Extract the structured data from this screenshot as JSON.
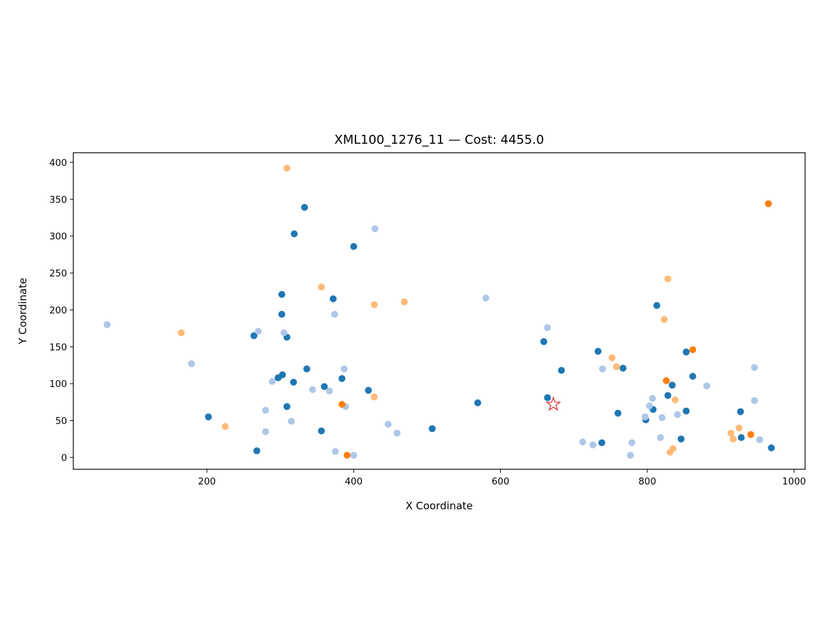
{
  "chart_data": {
    "type": "scatter",
    "title": "XML100_1276_11  —  Cost: 4455.0",
    "xlabel": "X Coordinate",
    "ylabel": "Y Coordinate",
    "xlim": [
      18,
      1015
    ],
    "ylim": [
      -16,
      413
    ],
    "xticks": [
      200,
      400,
      600,
      800,
      1000
    ],
    "yticks": [
      0,
      50,
      100,
      150,
      200,
      250,
      300,
      350,
      400
    ],
    "grid": false,
    "colors": {
      "dark_blue": "#1f77b4",
      "light_blue": "#aec7e8",
      "dark_orange": "#ff7f0e",
      "light_orange": "#ffbb78",
      "depot": "#d62728"
    },
    "depot": {
      "x": 672,
      "y": 72,
      "marker": "star"
    },
    "series": [
      {
        "color": "#1f77b4",
        "points": [
          [
            333,
            339
          ],
          [
            319,
            303
          ],
          [
            400,
            286
          ],
          [
            302,
            221
          ],
          [
            372,
            215
          ],
          [
            302,
            194
          ],
          [
            309,
            163
          ],
          [
            264,
            165
          ],
          [
            336,
            120
          ],
          [
            303,
            112
          ],
          [
            297,
            108
          ],
          [
            318,
            102
          ],
          [
            384,
            107
          ],
          [
            360,
            96
          ],
          [
            420,
            91
          ],
          [
            309,
            69
          ],
          [
            202,
            55
          ],
          [
            356,
            36
          ],
          [
            268,
            9
          ],
          [
            507,
            39
          ],
          [
            569,
            74
          ],
          [
            813,
            206
          ],
          [
            659,
            157
          ],
          [
            733,
            144
          ],
          [
            683,
            118
          ],
          [
            767,
            121
          ],
          [
            664,
            81
          ],
          [
            760,
            60
          ],
          [
            738,
            20
          ],
          [
            798,
            51
          ],
          [
            808,
            65
          ],
          [
            828,
            84
          ],
          [
            834,
            98
          ],
          [
            853,
            143
          ],
          [
            862,
            110
          ],
          [
            853,
            63
          ],
          [
            846,
            25
          ],
          [
            927,
            62
          ],
          [
            928,
            27
          ],
          [
            969,
            13
          ]
        ]
      },
      {
        "color": "#aec7e8",
        "points": [
          [
            64,
            180
          ],
          [
            179,
            127
          ],
          [
            270,
            171
          ],
          [
            305,
            169
          ],
          [
            289,
            103
          ],
          [
            280,
            64
          ],
          [
            280,
            35
          ],
          [
            315,
            49
          ],
          [
            344,
            92
          ],
          [
            367,
            90
          ],
          [
            387,
            120
          ],
          [
            389,
            69
          ],
          [
            374,
            194
          ],
          [
            429,
            310
          ],
          [
            447,
            45
          ],
          [
            459,
            33
          ],
          [
            375,
            8
          ],
          [
            400,
            3
          ],
          [
            580,
            216
          ],
          [
            664,
            176
          ],
          [
            739,
            120
          ],
          [
            712,
            21
          ],
          [
            726,
            17
          ],
          [
            779,
            20
          ],
          [
            777,
            3
          ],
          [
            797,
            55
          ],
          [
            803,
            70
          ],
          [
            807,
            80
          ],
          [
            818,
            27
          ],
          [
            820,
            54
          ],
          [
            841,
            58
          ],
          [
            881,
            97
          ],
          [
            946,
            122
          ],
          [
            946,
            77
          ],
          [
            953,
            24
          ]
        ]
      },
      {
        "color": "#ff7f0e",
        "points": [
          [
            965,
            344
          ],
          [
            862,
            146
          ],
          [
            826,
            104
          ],
          [
            384,
            72
          ],
          [
            391,
            3
          ],
          [
            941,
            31
          ]
        ]
      },
      {
        "color": "#ffbb78",
        "points": [
          [
            309,
            392
          ],
          [
            356,
            231
          ],
          [
            428,
            207
          ],
          [
            469,
            211
          ],
          [
            165,
            169
          ],
          [
            225,
            42
          ],
          [
            428,
            82
          ],
          [
            828,
            242
          ],
          [
            823,
            187
          ],
          [
            752,
            135
          ],
          [
            758,
            123
          ],
          [
            838,
            78
          ],
          [
            835,
            12
          ],
          [
            831,
            7
          ],
          [
            914,
            33
          ],
          [
            917,
            25
          ],
          [
            925,
            40
          ]
        ]
      }
    ]
  }
}
